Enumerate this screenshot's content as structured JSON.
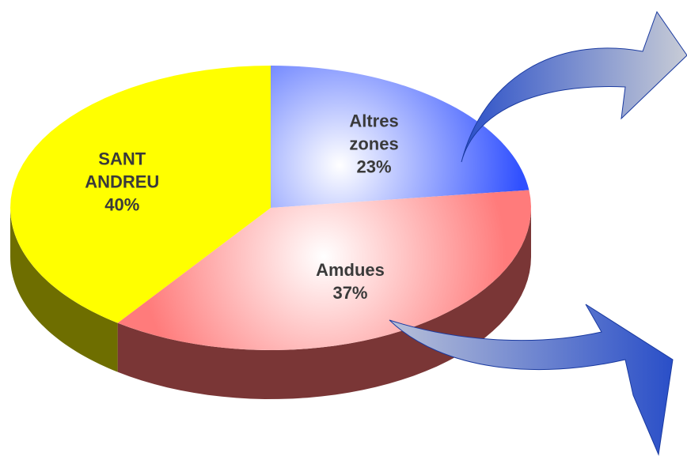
{
  "chart_data": {
    "type": "pie3d",
    "categories": [
      "Altres zones",
      "Amdues",
      "SANT ANDREU"
    ],
    "values": [
      23,
      37,
      40
    ],
    "value_labels": [
      "23%",
      "37%",
      "40%"
    ],
    "colors": [
      "#3050ff",
      "#ff7b7b",
      "#ffff00"
    ],
    "side_colors": [
      "#1a2a90",
      "#7a3636",
      "#6e6e00"
    ]
  }
}
